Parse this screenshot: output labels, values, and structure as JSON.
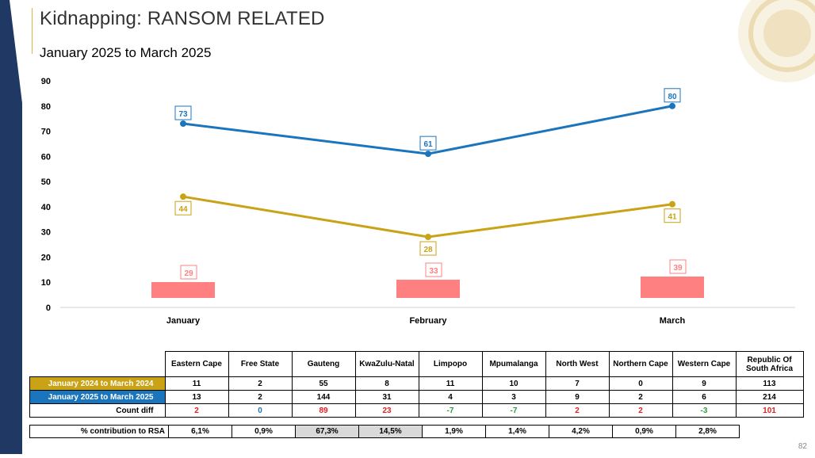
{
  "title": "Kidnapping: RANSOM RELATED",
  "subtitle": "January 2025 to March 2025",
  "page_number": "82",
  "colors": {
    "series_2025": "#1b75bc",
    "series_2024": "#c9a216",
    "bars": "#ff8080",
    "left_bar": "#1f3864",
    "title_rule": "#e0b441",
    "diff_up": "#e02020",
    "diff_zero": "#1b75bc",
    "diff_down": "#2e9b3e",
    "highlight_cell": "#d9d9d9"
  },
  "chart_data": {
    "type": "line",
    "categories": [
      "January",
      "February",
      "March"
    ],
    "yticks": [
      "0",
      "10",
      "20",
      "30",
      "40",
      "50",
      "60",
      "70",
      "80",
      "90"
    ],
    "ylim": [
      0,
      90
    ],
    "grid": false,
    "legend": "none",
    "series": [
      {
        "values": [
          73,
          61,
          80
        ],
        "labels": [
          "73",
          "61",
          "80"
        ],
        "color": "#1b75bc"
      },
      {
        "values": [
          44,
          28,
          41
        ],
        "labels": [
          "44",
          "28",
          "41"
        ],
        "color": "#c9a216"
      }
    ],
    "bar_series": {
      "values": [
        29,
        33,
        39
      ],
      "labels": [
        "29",
        "33",
        "39"
      ],
      "color": "#ff8080"
    }
  },
  "table": {
    "columns": [
      "Eastern Cape",
      "Free State",
      "Gauteng",
      "KwaZulu-Natal",
      "Limpopo",
      "Mpumalanga",
      "North West",
      "Northern Cape",
      "Western Cape",
      "Republic Of South Africa"
    ],
    "rows": [
      {
        "label": "January 2024 to March 2024",
        "bg": "#c9a216",
        "values": [
          "11",
          "2",
          "55",
          "8",
          "11",
          "10",
          "7",
          "0",
          "9",
          "113"
        ]
      },
      {
        "label": "January 2025 to March 2025",
        "bg": "#1b75bc",
        "values": [
          "13",
          "2",
          "144",
          "31",
          "4",
          "3",
          "9",
          "2",
          "6",
          "214"
        ]
      },
      {
        "label": "Count diff",
        "values": [
          "2",
          "0",
          "89",
          "23",
          "-7",
          "-7",
          "2",
          "2",
          "-3",
          "101"
        ],
        "value_colors": [
          "#e02020",
          "#1b75bc",
          "#e02020",
          "#e02020",
          "#2e9b3e",
          "#2e9b3e",
          "#e02020",
          "#e02020",
          "#2e9b3e",
          "#e02020"
        ]
      }
    ]
  },
  "contribution": {
    "label": "% contribution to RSA",
    "values": [
      "6,1%",
      "0,9%",
      "67,3%",
      "14,5%",
      "1,9%",
      "1,4%",
      "4,2%",
      "0,9%",
      "2,8%"
    ],
    "highlighted": [
      false,
      false,
      true,
      true,
      false,
      false,
      false,
      false,
      false
    ]
  }
}
